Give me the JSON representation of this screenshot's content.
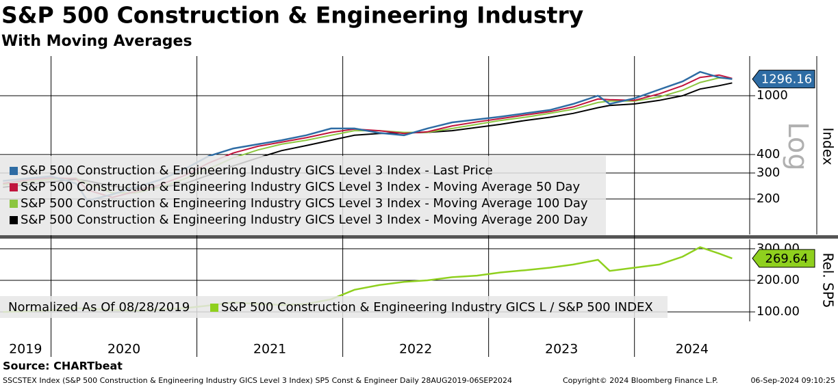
{
  "title": "S&P 500 Construction & Engineering Industry",
  "subtitle": "With Moving Averages",
  "source": "Source: CHARTbeat",
  "footer": [
    "SSCSTEX Index (S&P 500 Construction & Engineering Industry GICS Level 3 Index) SP5 Const & Engineer  Daily 28AUG2019-06SEP2024",
    "Copyright© 2024 Bloomberg Finance L.P.",
    "06-Sep-2024 09:10:25"
  ],
  "chart_data": [
    {
      "type": "line",
      "log": true,
      "ylabel": "Index",
      "scale_label": "Log",
      "xlim": [
        2019.65,
        2024.79
      ],
      "xticks": [
        2020,
        2021,
        2022,
        2023,
        2024
      ],
      "x_band_labels": [
        "2019",
        "2020",
        "2021",
        "2022",
        "2023",
        "2024"
      ],
      "ylim": [
        115,
        1855
      ],
      "yticks": [
        200,
        300,
        400,
        1000
      ],
      "x": [
        2019.67,
        2019.83,
        2020.0,
        2020.17,
        2020.25,
        2020.42,
        2020.58,
        2020.75,
        2020.92,
        2021.08,
        2021.25,
        2021.42,
        2021.58,
        2021.75,
        2021.92,
        2022.08,
        2022.25,
        2022.42,
        2022.58,
        2022.75,
        2022.92,
        2023.08,
        2023.25,
        2023.42,
        2023.58,
        2023.75,
        2023.83,
        2024.0,
        2024.17,
        2024.33,
        2024.45,
        2024.58,
        2024.67
      ],
      "series": [
        {
          "name": "S&P 500 Construction & Engineering Industry GICS Level 3 Index - Last Price",
          "color": "#2e6ca4",
          "values": [
            265,
            275,
            285,
            255,
            195,
            215,
            240,
            270,
            320,
            390,
            440,
            470,
            500,
            540,
            600,
            600,
            560,
            540,
            600,
            660,
            690,
            720,
            760,
            800,
            880,
            1000,
            880,
            960,
            1100,
            1250,
            1450,
            1330,
            1296.16
          ]
        },
        {
          "name": "S&P 500 Construction & Engineering Industry GICS Level 3 Index - Moving Average 50 Day",
          "color": "#c0143c",
          "values": [
            255,
            268,
            278,
            275,
            230,
            205,
            225,
            250,
            290,
            350,
            410,
            455,
            485,
            520,
            565,
            595,
            580,
            555,
            570,
            625,
            665,
            700,
            740,
            780,
            840,
            950,
            940,
            930,
            1030,
            1170,
            1330,
            1380,
            1310
          ]
        },
        {
          "name": "S&P 500 Construction & Engineering Industry GICS Level 3 Index - Moving Average 100 Day",
          "color": "#8cc63f",
          "values": [
            250,
            260,
            272,
            277,
            255,
            220,
            220,
            240,
            275,
            320,
            380,
            430,
            470,
            500,
            540,
            580,
            580,
            565,
            565,
            600,
            640,
            680,
            715,
            760,
            810,
            900,
            920,
            920,
            980,
            1090,
            1230,
            1320,
            1300
          ]
        },
        {
          "name": "S&P 500 Construction & Engineering Industry GICS Level 3 Index - Moving Average 200 Day",
          "color": "#000000",
          "values": [
            240,
            250,
            262,
            272,
            265,
            245,
            235,
            240,
            255,
            290,
            335,
            380,
            425,
            460,
            500,
            540,
            555,
            560,
            565,
            580,
            610,
            640,
            680,
            715,
            760,
            830,
            860,
            880,
            930,
            1000,
            1110,
            1170,
            1220
          ]
        }
      ]
    },
    {
      "type": "line",
      "log": false,
      "ylabel": "Rel. SP5",
      "legend_prefix": "Normalized As Of 08/28/2019",
      "xlim": [
        2019.65,
        2024.79
      ],
      "ylim": [
        70,
        330
      ],
      "yticks": [
        {
          "value": 100,
          "label": "100.00"
        },
        {
          "value": 200,
          "label": "200.00"
        },
        {
          "value": 300,
          "label": "300.00"
        }
      ],
      "x": [
        2019.67,
        2019.83,
        2020.0,
        2020.17,
        2020.25,
        2020.42,
        2020.58,
        2020.75,
        2020.92,
        2021.08,
        2021.25,
        2021.42,
        2021.58,
        2021.75,
        2021.92,
        2022.08,
        2022.25,
        2022.42,
        2022.58,
        2022.75,
        2022.92,
        2023.08,
        2023.25,
        2023.42,
        2023.58,
        2023.75,
        2023.83,
        2024.0,
        2024.17,
        2024.33,
        2024.45,
        2024.58,
        2024.67
      ],
      "series": [
        {
          "name": "S&P 500 Construction & Engineering Industry GICS L / S&P 500 INDEX",
          "color": "#8fd01e",
          "values": [
            100,
            102,
            105,
            112,
            110,
            106,
            104,
            108,
            112,
            120,
            130,
            125,
            122,
            125,
            140,
            170,
            185,
            195,
            200,
            210,
            215,
            225,
            232,
            240,
            250,
            265,
            230,
            240,
            250,
            275,
            305,
            285,
            269.64
          ]
        }
      ]
    }
  ]
}
